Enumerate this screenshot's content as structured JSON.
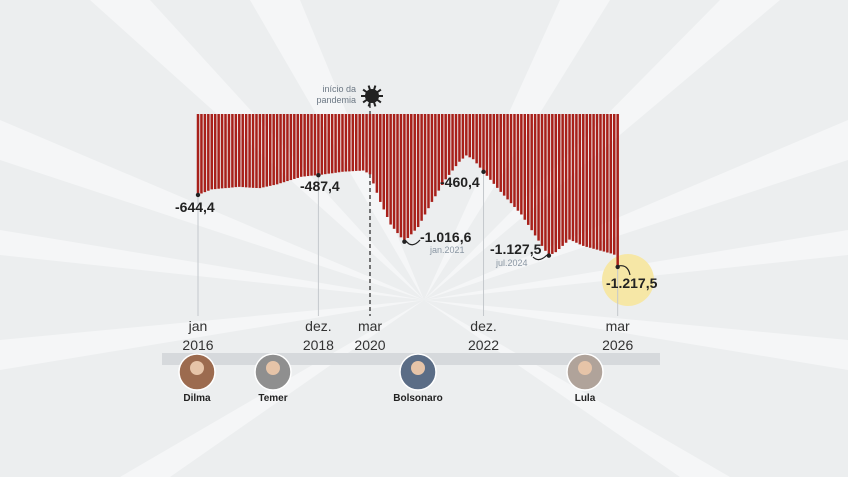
{
  "chart_data": {
    "type": "bar",
    "color": "#a8201a",
    "categories": [
      "jan 2016",
      null,
      null,
      null,
      null,
      null,
      null,
      null,
      null,
      null,
      null,
      null,
      null,
      null,
      null,
      null,
      null,
      null,
      null,
      null,
      null,
      null,
      null,
      null,
      null,
      null,
      null,
      null,
      null,
      null,
      null,
      null,
      null,
      null,
      null,
      "dez. 2018",
      null,
      null,
      null,
      null,
      null,
      null,
      null,
      null,
      null,
      null,
      null,
      null,
      null,
      null,
      "mar 2020",
      null,
      null,
      null,
      null,
      null,
      null,
      null,
      null,
      null,
      null,
      null,
      null,
      null,
      null,
      null,
      null,
      null,
      null,
      null,
      null,
      null,
      null,
      null,
      null,
      null,
      null,
      null,
      null,
      null,
      null,
      null,
      null,
      "dez. 2022",
      null,
      null,
      null,
      null,
      null,
      null,
      null,
      null,
      null,
      null,
      null,
      null,
      null,
      null,
      null,
      null,
      null,
      null,
      null,
      null,
      null,
      null,
      null,
      null,
      null,
      null,
      null,
      null,
      null,
      null,
      null,
      null,
      null,
      null,
      null,
      null,
      null,
      null,
      "mar 2026"
    ],
    "values": [
      -644.4,
      -633,
      -622,
      -611,
      -600,
      -598,
      -595,
      -592,
      -590,
      -588,
      -585,
      -582,
      -580,
      -582,
      -584,
      -586,
      -588,
      -589,
      -590,
      -584,
      -578,
      -572,
      -566,
      -560,
      -551,
      -543,
      -534,
      -526,
      -517,
      -509,
      -500,
      -497,
      -494,
      -491,
      -489,
      -487.4,
      -483,
      -479,
      -475,
      -472,
      -468,
      -464,
      -460,
      -458,
      -457,
      -455,
      -453,
      -452,
      -450,
      -465,
      -480,
      -553,
      -627,
      -700,
      -760,
      -820,
      -880,
      -914,
      -948,
      -982,
      -1016.6,
      -987,
      -958,
      -929,
      -900,
      -850,
      -800,
      -750,
      -700,
      -655,
      -610,
      -565,
      -520,
      -485,
      -450,
      -415,
      -380,
      -355,
      -330,
      -345,
      -360,
      -393,
      -427,
      -460.4,
      -492,
      -524,
      -556,
      -588,
      -620,
      -650,
      -680,
      -710,
      -740,
      -770,
      -800,
      -842,
      -883,
      -925,
      -967,
      -1008,
      -1050,
      -1089,
      -1127.5,
      -1114,
      -1100,
      -1075,
      -1050,
      -1025,
      -1000,
      -1012,
      -1025,
      -1038,
      -1050,
      -1058,
      -1065,
      -1073,
      -1080,
      -1088,
      -1095,
      -1103,
      -1110,
      -1120,
      -1217.5
    ],
    "value_labels": [
      "-644,4",
      null,
      null,
      null,
      null,
      null,
      null,
      null,
      null,
      null,
      null,
      null,
      null,
      null,
      null,
      null,
      null,
      null,
      null,
      null,
      null,
      null,
      null,
      null,
      null,
      null,
      null,
      null,
      null,
      null,
      null,
      null,
      null,
      null,
      null,
      "-487,4",
      null,
      null,
      null,
      null,
      null,
      null,
      null,
      null,
      null,
      null,
      null,
      null,
      null,
      null,
      null,
      null,
      null,
      null,
      null,
      null,
      null,
      null,
      null,
      null,
      "-1.016,6",
      null,
      null,
      null,
      null,
      null,
      null,
      null,
      null,
      null,
      null,
      null,
      null,
      null,
      null,
      null,
      null,
      null,
      null,
      null,
      null,
      null,
      null,
      "-460,4",
      null,
      null,
      null,
      null,
      null,
      null,
      null,
      null,
      null,
      null,
      null,
      null,
      null,
      null,
      null,
      null,
      null,
      null,
      "-1.127,5",
      null,
      null,
      null,
      null,
      null,
      null,
      null,
      null,
      null,
      null,
      null,
      null,
      null,
      null,
      null,
      null,
      null,
      null,
      null,
      "-1.217,5"
    ],
    "annotations": {
      "pandemic": "início da pandemia",
      "low_2021": "jan.2021",
      "low_2024": "jul.2024"
    },
    "presidents": [
      "Dilma",
      "Temer",
      "Bolsonaro",
      "Lula"
    ]
  }
}
